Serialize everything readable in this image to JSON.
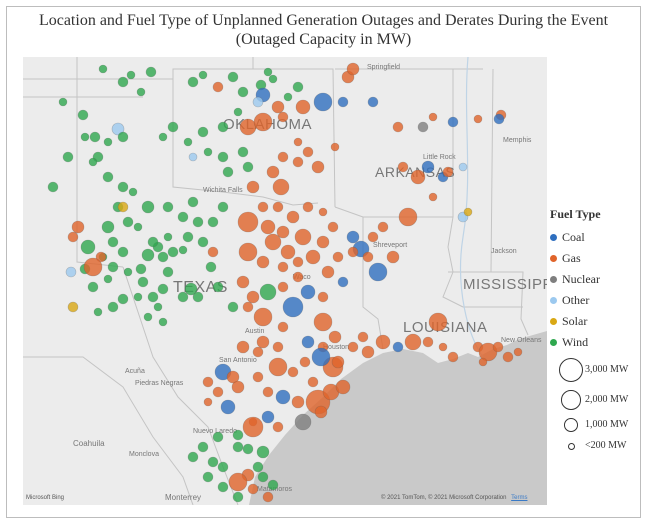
{
  "title_line1": "Location and Fuel Type of Unplanned Generation Outages and Derates During the Event",
  "title_line2": "(Outaged Capacity in MW)",
  "legend": {
    "title": "Fuel Type",
    "items": [
      {
        "label": "Coal",
        "color": "#2f6fbf"
      },
      {
        "label": "Gas",
        "color": "#e0642a"
      },
      {
        "label": "Nuclear",
        "color": "#7f7f7f"
      },
      {
        "label": "Other",
        "color": "#9cc9ef"
      },
      {
        "label": "Solar",
        "color": "#d9a814"
      },
      {
        "label": "Wind",
        "color": "#2fa84f"
      }
    ]
  },
  "size_legend": [
    {
      "label": "3,000 MW",
      "mw": 3000
    },
    {
      "label": "2,000 MW",
      "mw": 2000
    },
    {
      "label": "1,000 MW",
      "mw": 1000
    },
    {
      "label": "<200 MW",
      "mw": 200
    }
  ],
  "map_labels": {
    "states": [
      "OKLAHOMA",
      "ARKANSAS",
      "TEXAS",
      "LOUISIANA",
      "MISSISSIPPI"
    ],
    "cities": [
      "Springfield",
      "Memphis",
      "Little Rock",
      "Wichita Falls",
      "Shreveport",
      "Jackson",
      "Austin",
      "San Antonio",
      "Houston",
      "New Orleans",
      "Acuña",
      "Piedras Negras",
      "Nuevo Laredo",
      "Coahuila",
      "Monclova",
      "Monterrey",
      "Matamoros",
      "Waco"
    ]
  },
  "attribution": {
    "bing": "Microsoft Bing",
    "copyright": "© 2021 TomTom, © 2021 Microsoft Corporation",
    "terms": "Terms"
  }
}
